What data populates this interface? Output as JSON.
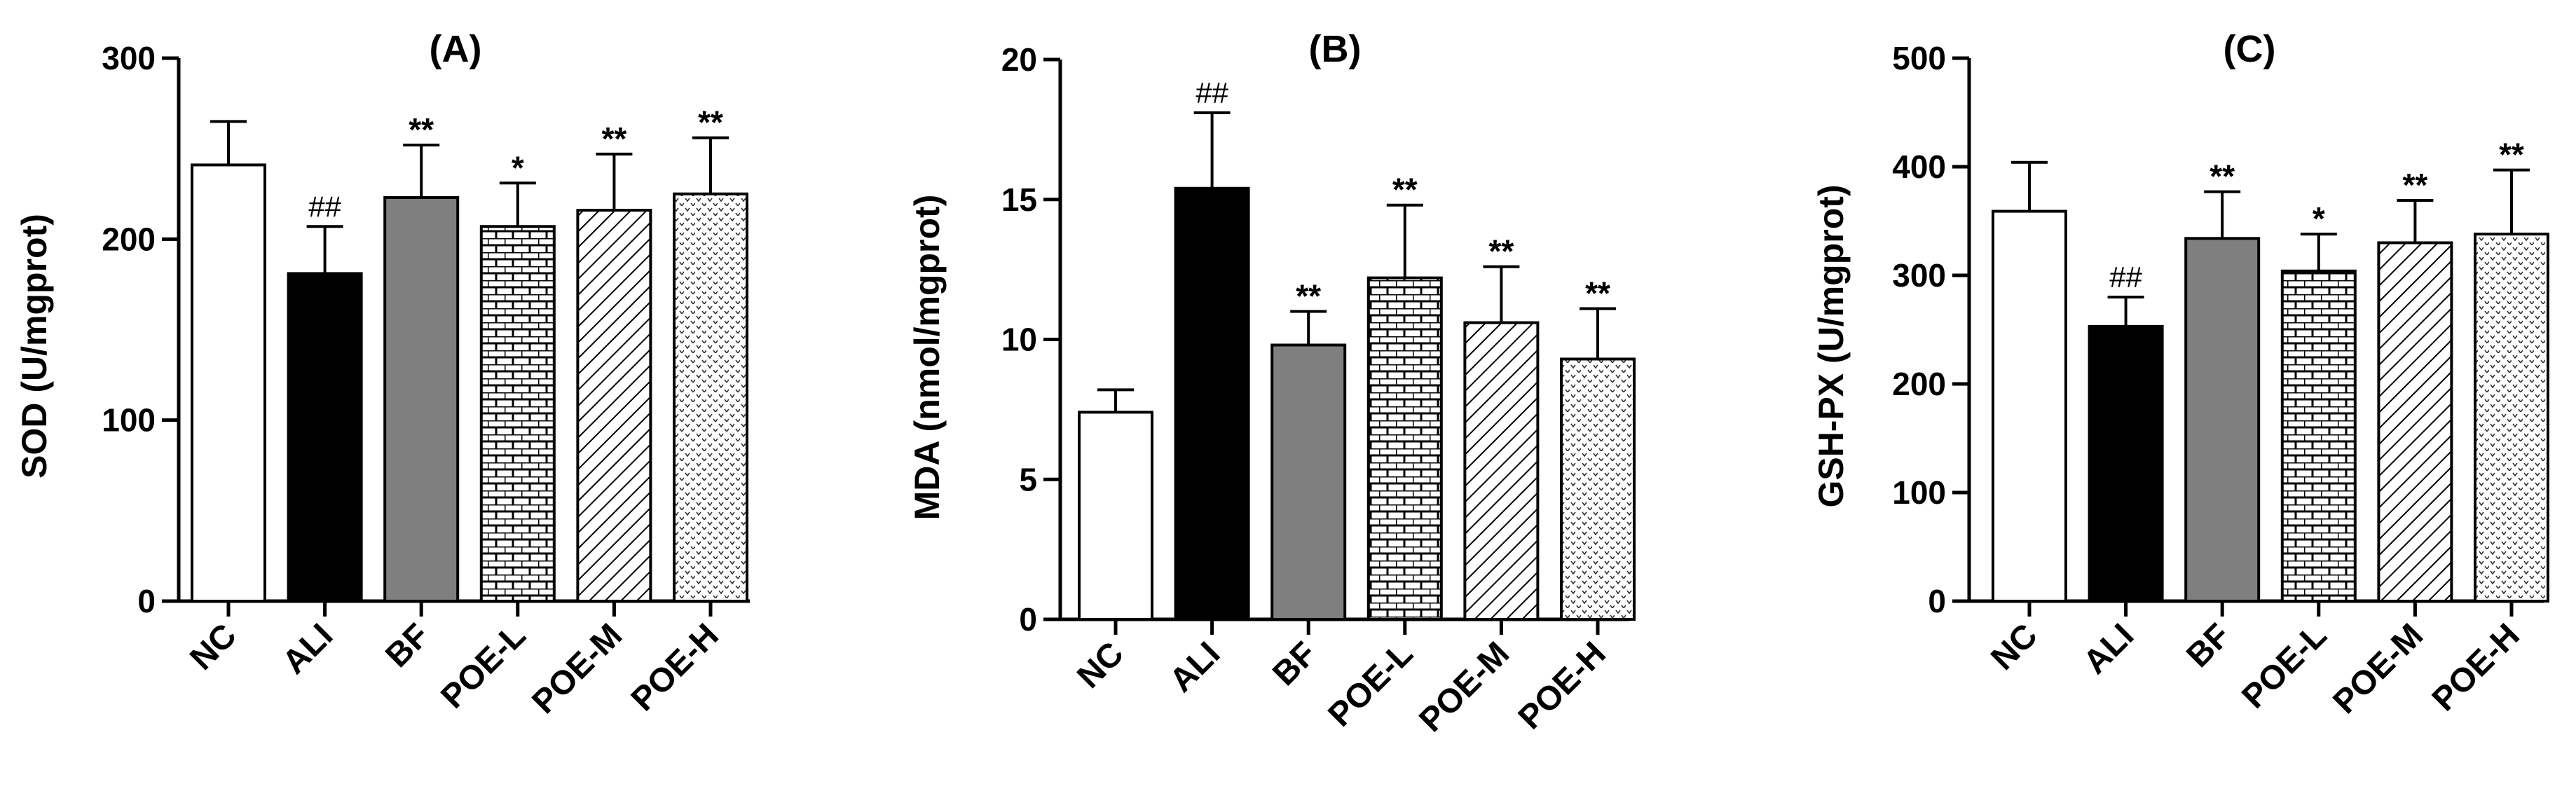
{
  "chart_data": [
    {
      "type": "bar",
      "title": "(A)",
      "ylabel": "SOD (U/mgprot)",
      "ylim": [
        0,
        300
      ],
      "yticks": [
        0,
        100,
        200,
        300
      ],
      "categories": [
        "NC",
        "ALI",
        "BF",
        "POE-L",
        "POE-M",
        "POE-H"
      ],
      "values": [
        241,
        181,
        223,
        207,
        216,
        225
      ],
      "errors": [
        24,
        26,
        29,
        24,
        31,
        31
      ],
      "annotations": [
        "",
        "##",
        "**",
        "*",
        "**",
        "**"
      ],
      "patterns": [
        "white",
        "black",
        "gray",
        "brick",
        "diagonal",
        "dots"
      ]
    },
    {
      "type": "bar",
      "title": "(B)",
      "ylabel": "MDA (nmol/mgprot)",
      "ylim": [
        0,
        20
      ],
      "yticks": [
        0,
        5,
        10,
        15,
        20
      ],
      "categories": [
        "NC",
        "ALI",
        "BF",
        "POE-L",
        "POE-M",
        "POE-H"
      ],
      "values": [
        7.4,
        15.4,
        9.8,
        12.2,
        10.6,
        9.3
      ],
      "errors": [
        0.8,
        2.7,
        1.2,
        2.6,
        2.0,
        1.8
      ],
      "annotations": [
        "",
        "##",
        "**",
        "**",
        "**",
        "**"
      ],
      "patterns": [
        "white",
        "black",
        "gray",
        "brick",
        "diagonal",
        "dots"
      ]
    },
    {
      "type": "bar",
      "title": "(C)",
      "ylabel": "GSH-PX (U/mgprot)",
      "ylim": [
        0,
        500
      ],
      "yticks": [
        0,
        100,
        200,
        300,
        400,
        500
      ],
      "categories": [
        "NC",
        "ALI",
        "BF",
        "POE-L",
        "POE-M",
        "POE-H"
      ],
      "values": [
        359,
        253,
        334,
        304,
        330,
        338
      ],
      "errors": [
        45,
        27,
        43,
        34,
        39,
        59
      ],
      "annotations": [
        "",
        "##",
        "**",
        "*",
        "**",
        "**"
      ],
      "patterns": [
        "white",
        "black",
        "gray",
        "brick",
        "diagonal",
        "dots"
      ]
    }
  ]
}
